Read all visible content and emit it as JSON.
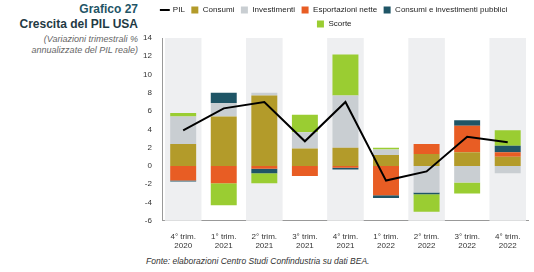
{
  "chart_data": {
    "type": "bar",
    "chart_label": "Grafico 27",
    "title": "Crescita del PIL USA",
    "subtitle": "(Variazioni trimestrali % annualizzate del PIL reale)",
    "source": "Fonte: elaborazioni Centro Studi Confindustria su dati BEA.",
    "categories": [
      [
        "4° trim.",
        "2020"
      ],
      [
        "1° trim.",
        "2021"
      ],
      [
        "2° trim.",
        "2021"
      ],
      [
        "3° trim.",
        "2021"
      ],
      [
        "4° trim.",
        "2021"
      ],
      [
        "1° trim.",
        "2022"
      ],
      [
        "2° trim.",
        "2022"
      ],
      [
        "3° trim.",
        "2022"
      ],
      [
        "4° trim.",
        "2022"
      ]
    ],
    "series": [
      {
        "name": "Consumi",
        "color": "#b39b2a",
        "values": [
          2.4,
          5.4,
          7.7,
          1.9,
          2.0,
          1.2,
          1.3,
          1.5,
          1.0
        ]
      },
      {
        "name": "Investimenti",
        "color": "#c9ced2",
        "values": [
          3.0,
          1.5,
          0.3,
          1.8,
          5.7,
          0.6,
          -2.9,
          -1.8,
          -0.8
        ]
      },
      {
        "name": "Esportazioni nette",
        "color": "#e85d24",
        "values": [
          -1.6,
          -1.9,
          -0.3,
          -1.1,
          -0.2,
          -3.2,
          1.1,
          2.9,
          0.5
        ]
      },
      {
        "name": "Consumi e investimenti pubblici",
        "color": "#1f5566",
        "values": [
          -0.1,
          1.1,
          -0.5,
          0.0,
          -0.2,
          -0.3,
          -0.2,
          0.6,
          0.7
        ]
      },
      {
        "name": "Scorte",
        "color": "#9acd32",
        "values": [
          0.4,
          -2.4,
          -1.1,
          1.9,
          4.5,
          0.2,
          -1.9,
          -1.2,
          1.7
        ]
      },
      {
        "name": "PIL",
        "color": "#000000",
        "type": "line",
        "values": [
          3.9,
          6.3,
          7.0,
          2.7,
          7.0,
          -1.6,
          -0.6,
          3.2,
          2.6
        ]
      }
    ],
    "ylim": [
      -6,
      14
    ],
    "yticks": [
      -6,
      -4,
      -2,
      0,
      2,
      4,
      6,
      8,
      10,
      12,
      14
    ],
    "stacked": true,
    "grid": false,
    "legend": "top"
  }
}
